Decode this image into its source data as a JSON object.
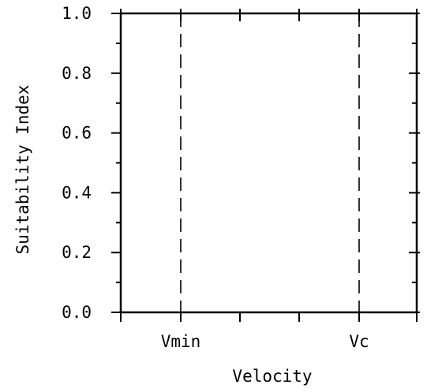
{
  "chart_data": {
    "type": "line",
    "title": "",
    "xlabel": "Velocity",
    "ylabel": "Suitability Index",
    "ylim": [
      0.0,
      1.0
    ],
    "y_ticks": [
      "0.0",
      "0.2",
      "0.4",
      "0.6",
      "0.8",
      "1.0"
    ],
    "x_ticks": [
      "Vmin",
      "Vc"
    ],
    "reference_lines": [
      {
        "label": "Vmin",
        "style": "dashed",
        "orientation": "vertical"
      },
      {
        "label": "Vc",
        "style": "dashed",
        "orientation": "vertical"
      }
    ],
    "series": [],
    "grid": false,
    "legend": "none",
    "colors": {
      "axis": "#000000",
      "background": "#ffffff"
    }
  }
}
